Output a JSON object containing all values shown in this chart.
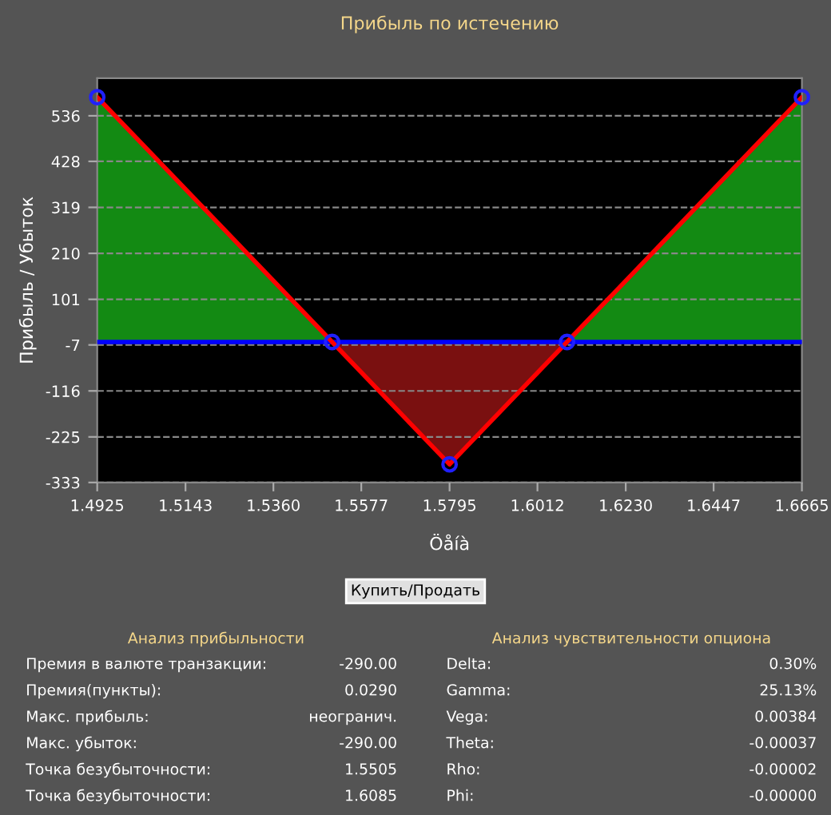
{
  "chart_data": {
    "type": "line",
    "title": "Прибыль по истечению",
    "xlabel": "Öåíà",
    "ylabel": "Прибыль / Убыток",
    "x": [
      1.4925,
      1.5505,
      1.5795,
      1.6085,
      1.6665
    ],
    "series": [
      {
        "type": "area",
        "color": "#138a13",
        "values": [
          580,
          0,
          null,
          0,
          580
        ]
      },
      {
        "type": "area",
        "color": "#7a1010",
        "values": [
          null,
          0,
          -290,
          0,
          null
        ]
      },
      {
        "color": "#ff0000",
        "values": [
          580,
          0,
          -290,
          0,
          580
        ]
      },
      {
        "type": "scatter",
        "color": "#2020ff",
        "marker": "circle",
        "values": [
          580,
          0,
          -290,
          0,
          580
        ]
      }
    ],
    "xlim": [
      1.4925,
      1.6665
    ],
    "xticks": [
      {
        "value": 1.4925,
        "label": "1.4925"
      },
      {
        "value": 1.5143,
        "label": "1.5143"
      },
      {
        "value": 1.536,
        "label": "1.5360"
      },
      {
        "value": 1.5577,
        "label": "1.5577"
      },
      {
        "value": 1.5795,
        "label": "1.5795"
      },
      {
        "value": 1.6012,
        "label": "1.6012"
      },
      {
        "value": 1.623,
        "label": "1.6230"
      },
      {
        "value": 1.6447,
        "label": "1.6447"
      },
      {
        "value": 1.6665,
        "label": "1.6665"
      }
    ],
    "ylim": [
      -333,
      625
    ],
    "yticks": [
      -333,
      -225,
      -116,
      -7,
      101,
      210,
      319,
      428,
      536
    ],
    "ref_lines": [
      {
        "axis": "y",
        "value": 0,
        "color": "#0000ff"
      }
    ],
    "grid": "y",
    "line_style": "solid",
    "annotations": [
      "Купить/Продать",
      "Анализ прибыльности",
      "Премия в валюте транзакции:",
      "-290.00",
      "Премия(пункты):",
      "0.0290",
      "Макс. прибыль:",
      "неогранич.",
      "Макс. убыток:",
      "-290.00",
      "Точка безубыточности:",
      "1.5505",
      "Точка безубыточности:",
      "1.6085",
      "Анализ чувствительности опциона",
      "Delta:",
      "0.30%",
      "Gamma:",
      "25.13%",
      "Vega:",
      "0.00384",
      "Theta:",
      "-0.00037",
      "Rho:",
      "-0.00002",
      "Phi:",
      "-0.00000"
    ]
  }
}
